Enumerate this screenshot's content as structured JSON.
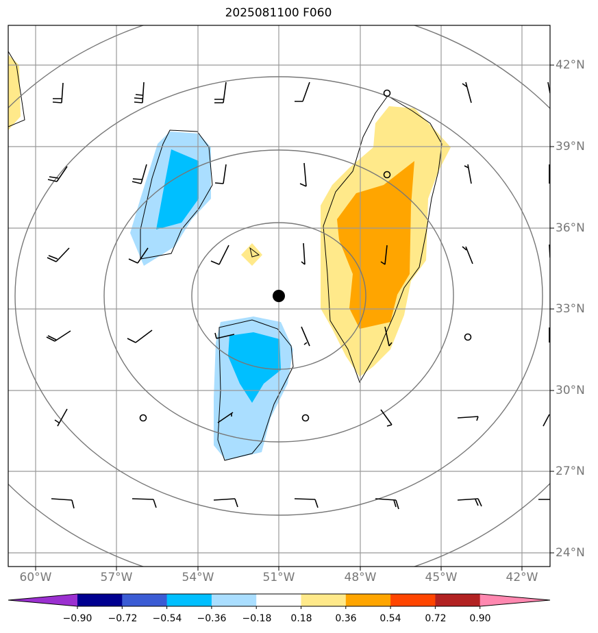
{
  "title": "2025081100 F060",
  "lat_labels": [
    "42°N",
    "39°N",
    "36°N",
    "33°N",
    "30°N",
    "27°N",
    "24°N"
  ],
  "lon_labels": [
    "60°W",
    "57°W",
    "54°W",
    "51°W",
    "48°W",
    "45°W",
    "42°W"
  ],
  "colorbar": {
    "tick_labels": [
      "−0.90",
      "−0.72",
      "−0.54",
      "−0.36",
      "−0.18",
      "0.18",
      "0.36",
      "0.54",
      "0.72",
      "0.90"
    ],
    "colors": [
      "#9b30d0",
      "#000090",
      "#3b5cd4",
      "#00bfff",
      "#aadeff",
      "#ffffff",
      "#ffe98a",
      "#ffa500",
      "#ff4500",
      "#b22222",
      "#ff88b0"
    ]
  },
  "field_colors": {
    "pos_light": "#ffe98a",
    "pos_dark": "#ffa500",
    "neg_light": "#aadeff",
    "neg_dark": "#00bfff"
  },
  "center_marker": "storm-center-dot"
}
